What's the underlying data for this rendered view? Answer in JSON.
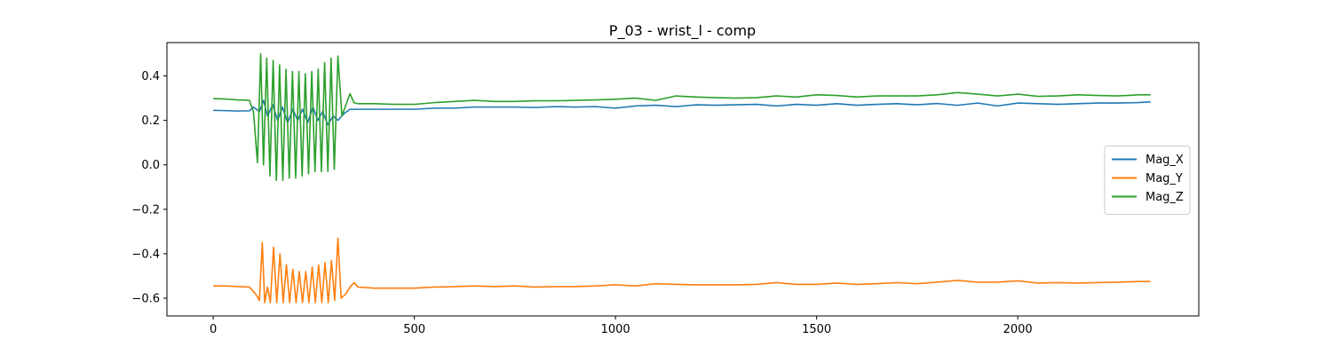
{
  "chart_data": {
    "type": "line",
    "title": "P_03 - wrist_l - comp",
    "xlabel": "",
    "ylabel": "",
    "xlim": [
      -115,
      2450
    ],
    "ylim": [
      -0.68,
      0.55
    ],
    "xticks": [
      0,
      500,
      1000,
      1500,
      2000
    ],
    "xtick_labels": [
      "0",
      "500",
      "1000",
      "1500",
      "2000"
    ],
    "yticks": [
      -0.6,
      -0.4,
      -0.2,
      0.0,
      0.2,
      0.4
    ],
    "ytick_labels": [
      "−0.6",
      "−0.4",
      "−0.2",
      "0.0",
      "0.2",
      "0.4"
    ],
    "grid": false,
    "legend_position": "center-right",
    "series": [
      {
        "name": "Mag_X",
        "color": "#1f77b4",
        "x": [
          0,
          30,
          60,
          90,
          100,
          115,
          125,
          135,
          148,
          160,
          172,
          185,
          198,
          210,
          222,
          235,
          248,
          260,
          272,
          285,
          298,
          310,
          325,
          340,
          360,
          400,
          450,
          500,
          550,
          600,
          650,
          700,
          750,
          800,
          850,
          900,
          950,
          1000,
          1050,
          1100,
          1150,
          1200,
          1250,
          1300,
          1350,
          1400,
          1450,
          1500,
          1550,
          1600,
          1650,
          1700,
          1750,
          1800,
          1850,
          1900,
          1950,
          2000,
          2050,
          2100,
          2150,
          2200,
          2250,
          2300,
          2330
        ],
        "y": [
          0.245,
          0.244,
          0.242,
          0.243,
          0.26,
          0.24,
          0.29,
          0.22,
          0.27,
          0.2,
          0.26,
          0.19,
          0.25,
          0.2,
          0.25,
          0.19,
          0.26,
          0.2,
          0.24,
          0.18,
          0.22,
          0.2,
          0.23,
          0.25,
          0.25,
          0.25,
          0.25,
          0.25,
          0.255,
          0.255,
          0.26,
          0.26,
          0.26,
          0.258,
          0.262,
          0.26,
          0.262,
          0.255,
          0.265,
          0.268,
          0.262,
          0.27,
          0.268,
          0.27,
          0.272,
          0.265,
          0.272,
          0.268,
          0.275,
          0.268,
          0.272,
          0.275,
          0.27,
          0.276,
          0.268,
          0.278,
          0.265,
          0.278,
          0.275,
          0.272,
          0.275,
          0.278,
          0.278,
          0.28,
          0.283
        ]
      },
      {
        "name": "Mag_Y",
        "color": "#ff7f0e",
        "x": [
          0,
          30,
          60,
          90,
          105,
          115,
          122,
          128,
          135,
          142,
          150,
          158,
          166,
          174,
          182,
          190,
          198,
          206,
          214,
          222,
          230,
          238,
          246,
          254,
          262,
          270,
          278,
          286,
          294,
          302,
          310,
          318,
          330,
          340,
          350,
          360,
          400,
          450,
          500,
          550,
          600,
          650,
          700,
          750,
          800,
          850,
          900,
          950,
          1000,
          1050,
          1100,
          1150,
          1200,
          1250,
          1300,
          1350,
          1400,
          1450,
          1500,
          1550,
          1600,
          1650,
          1700,
          1750,
          1800,
          1850,
          1900,
          1950,
          2000,
          2050,
          2100,
          2150,
          2200,
          2250,
          2300,
          2330
        ],
        "y": [
          -0.545,
          -0.545,
          -0.548,
          -0.55,
          -0.58,
          -0.61,
          -0.35,
          -0.62,
          -0.55,
          -0.62,
          -0.37,
          -0.62,
          -0.4,
          -0.62,
          -0.45,
          -0.62,
          -0.47,
          -0.62,
          -0.48,
          -0.62,
          -0.48,
          -0.62,
          -0.46,
          -0.62,
          -0.45,
          -0.62,
          -0.44,
          -0.62,
          -0.43,
          -0.61,
          -0.33,
          -0.6,
          -0.58,
          -0.55,
          -0.53,
          -0.55,
          -0.555,
          -0.555,
          -0.555,
          -0.55,
          -0.548,
          -0.545,
          -0.548,
          -0.545,
          -0.55,
          -0.548,
          -0.548,
          -0.545,
          -0.54,
          -0.545,
          -0.535,
          -0.538,
          -0.54,
          -0.54,
          -0.54,
          -0.538,
          -0.53,
          -0.538,
          -0.538,
          -0.532,
          -0.538,
          -0.535,
          -0.53,
          -0.535,
          -0.528,
          -0.52,
          -0.528,
          -0.528,
          -0.522,
          -0.532,
          -0.53,
          -0.532,
          -0.53,
          -0.528,
          -0.525,
          -0.525
        ]
      },
      {
        "name": "Mag_Z",
        "color": "#2ca02c",
        "x": [
          0,
          30,
          60,
          90,
          100,
          110,
          118,
          125,
          133,
          141,
          149,
          157,
          165,
          173,
          181,
          189,
          197,
          205,
          213,
          221,
          229,
          237,
          245,
          253,
          261,
          269,
          277,
          285,
          293,
          301,
          310,
          320,
          330,
          340,
          350,
          360,
          400,
          450,
          500,
          550,
          600,
          650,
          700,
          750,
          800,
          850,
          900,
          950,
          1000,
          1050,
          1100,
          1150,
          1200,
          1250,
          1300,
          1350,
          1400,
          1450,
          1500,
          1550,
          1600,
          1650,
          1700,
          1750,
          1800,
          1850,
          1900,
          1950,
          2000,
          2050,
          2100,
          2150,
          2200,
          2250,
          2300,
          2330
        ],
        "y": [
          0.298,
          0.296,
          0.292,
          0.29,
          0.24,
          0.01,
          0.5,
          0.0,
          0.48,
          -0.05,
          0.47,
          -0.07,
          0.45,
          -0.07,
          0.43,
          -0.06,
          0.42,
          -0.06,
          0.42,
          -0.05,
          0.41,
          -0.04,
          0.42,
          -0.03,
          0.43,
          -0.03,
          0.46,
          -0.03,
          0.48,
          -0.02,
          0.49,
          0.22,
          0.27,
          0.32,
          0.28,
          0.275,
          0.275,
          0.272,
          0.272,
          0.28,
          0.285,
          0.29,
          0.285,
          0.285,
          0.288,
          0.288,
          0.29,
          0.292,
          0.295,
          0.3,
          0.29,
          0.31,
          0.305,
          0.302,
          0.3,
          0.302,
          0.31,
          0.305,
          0.315,
          0.312,
          0.305,
          0.31,
          0.31,
          0.31,
          0.315,
          0.325,
          0.318,
          0.31,
          0.318,
          0.308,
          0.31,
          0.315,
          0.312,
          0.31,
          0.315,
          0.315
        ]
      }
    ]
  }
}
